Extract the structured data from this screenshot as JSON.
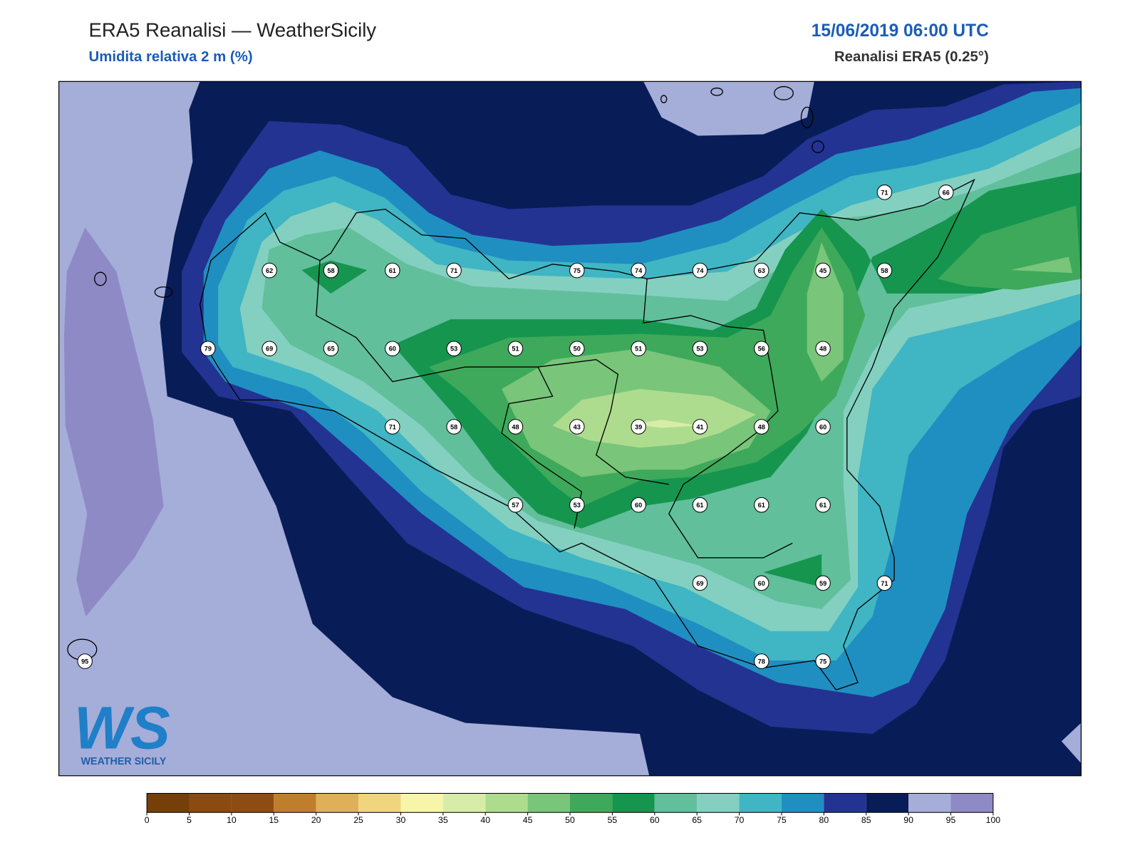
{
  "header": {
    "title": "ERA5 Reanalisi — WeatherSicily",
    "subtitle": "Umidita relativa 2 m (%)",
    "datetime": "15/06/2019 06:00 UTC",
    "source": "Reanalisi ERA5 (0.25°)"
  },
  "stations": [
    71,
    66,
    62,
    58,
    61,
    71,
    75,
    74,
    74,
    63,
    45,
    58,
    79,
    69,
    65,
    60,
    53,
    51,
    50,
    51,
    53,
    56,
    48,
    71,
    58,
    48,
    43,
    39,
    41,
    48,
    60,
    57,
    53,
    60,
    61,
    61,
    61,
    69,
    60,
    59,
    71,
    95,
    78,
    75
  ],
  "colorbar": {
    "ticks": [
      0,
      5,
      10,
      15,
      20,
      25,
      30,
      35,
      40,
      45,
      50,
      55,
      60,
      65,
      70,
      75,
      80,
      85,
      90,
      95,
      100
    ],
    "colors": [
      "#744008",
      "#8b4a0f",
      "#8f4c12",
      "#be7e2c",
      "#deb059",
      "#f1d57d",
      "#f6f5a8",
      "#d8ecaa",
      "#aedc8e",
      "#79c57a",
      "#3ea95a",
      "#16954f",
      "#61bf9c",
      "#83d0c0",
      "#40b5c4",
      "#1f8fc1",
      "#233392",
      "#081d57",
      "#a5add9",
      "#8e8ac6"
    ]
  },
  "logo": {
    "mark": "WS",
    "text": "WEATHER SICILY"
  }
}
